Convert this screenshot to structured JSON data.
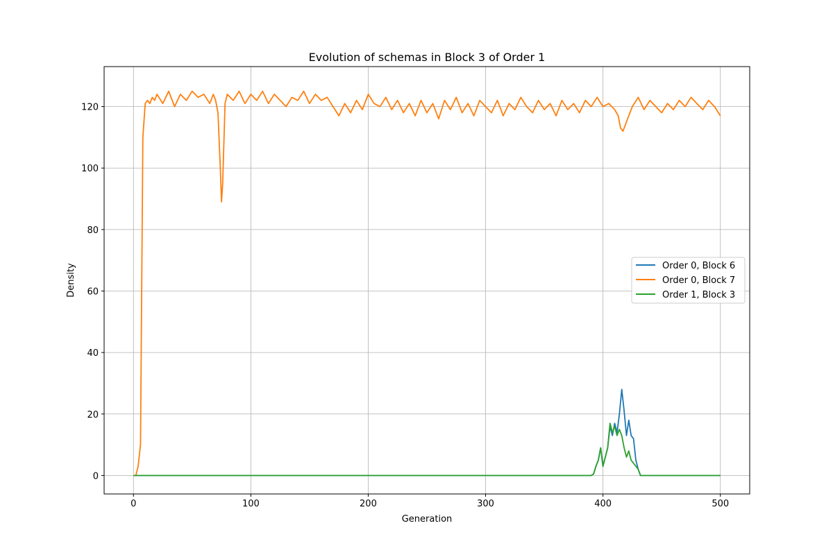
{
  "chart_data": {
    "type": "line",
    "title": "Evolution of schemas in Block 3 of Order 1",
    "xlabel": "Generation",
    "ylabel": "Density",
    "xlim": [
      -25,
      525
    ],
    "ylim": [
      -6,
      133
    ],
    "xticks": [
      0,
      100,
      200,
      300,
      400,
      500
    ],
    "yticks": [
      0,
      20,
      40,
      60,
      80,
      100,
      120
    ],
    "grid": true,
    "legend_position": "center-right",
    "series": [
      {
        "name": "Order 0, Block 6",
        "color": "#1f77b4",
        "points": [
          [
            0,
            0
          ],
          [
            390,
            0
          ],
          [
            392,
            0.5
          ],
          [
            394,
            3
          ],
          [
            396,
            5
          ],
          [
            398,
            9
          ],
          [
            400,
            3
          ],
          [
            402,
            6
          ],
          [
            404,
            9
          ],
          [
            406,
            16
          ],
          [
            408,
            13
          ],
          [
            410,
            17
          ],
          [
            412,
            14
          ],
          [
            414,
            20
          ],
          [
            416,
            28
          ],
          [
            418,
            21
          ],
          [
            420,
            13
          ],
          [
            422,
            18
          ],
          [
            424,
            13
          ],
          [
            426,
            12
          ],
          [
            428,
            5
          ],
          [
            430,
            2
          ],
          [
            432,
            0
          ],
          [
            500,
            0
          ]
        ]
      },
      {
        "name": "Order 0, Block 7",
        "color": "#ff7f0e",
        "points": [
          [
            0,
            0
          ],
          [
            2,
            0
          ],
          [
            4,
            3
          ],
          [
            6,
            10
          ],
          [
            8,
            110
          ],
          [
            10,
            121
          ],
          [
            12,
            122
          ],
          [
            14,
            121
          ],
          [
            16,
            123
          ],
          [
            18,
            122
          ],
          [
            20,
            124
          ],
          [
            25,
            121
          ],
          [
            30,
            125
          ],
          [
            35,
            120
          ],
          [
            40,
            124
          ],
          [
            45,
            122
          ],
          [
            50,
            125
          ],
          [
            55,
            123
          ],
          [
            60,
            124
          ],
          [
            65,
            121
          ],
          [
            68,
            124
          ],
          [
            70,
            122
          ],
          [
            72,
            118
          ],
          [
            74,
            100
          ],
          [
            75,
            89
          ],
          [
            76,
            95
          ],
          [
            78,
            121
          ],
          [
            80,
            124
          ],
          [
            85,
            122
          ],
          [
            90,
            125
          ],
          [
            95,
            121
          ],
          [
            100,
            124
          ],
          [
            105,
            122
          ],
          [
            110,
            125
          ],
          [
            115,
            121
          ],
          [
            120,
            124
          ],
          [
            125,
            122
          ],
          [
            130,
            120
          ],
          [
            135,
            123
          ],
          [
            140,
            122
          ],
          [
            145,
            125
          ],
          [
            150,
            121
          ],
          [
            155,
            124
          ],
          [
            160,
            122
          ],
          [
            165,
            123
          ],
          [
            170,
            120
          ],
          [
            175,
            117
          ],
          [
            180,
            121
          ],
          [
            185,
            118
          ],
          [
            190,
            122
          ],
          [
            195,
            119
          ],
          [
            200,
            124
          ],
          [
            205,
            121
          ],
          [
            210,
            120
          ],
          [
            215,
            123
          ],
          [
            220,
            119
          ],
          [
            225,
            122
          ],
          [
            230,
            118
          ],
          [
            235,
            121
          ],
          [
            240,
            117
          ],
          [
            245,
            122
          ],
          [
            250,
            118
          ],
          [
            255,
            121
          ],
          [
            260,
            116
          ],
          [
            265,
            122
          ],
          [
            270,
            119
          ],
          [
            275,
            123
          ],
          [
            280,
            118
          ],
          [
            285,
            121
          ],
          [
            290,
            117
          ],
          [
            295,
            122
          ],
          [
            300,
            120
          ],
          [
            305,
            118
          ],
          [
            310,
            122
          ],
          [
            315,
            117
          ],
          [
            320,
            121
          ],
          [
            325,
            119
          ],
          [
            330,
            123
          ],
          [
            335,
            120
          ],
          [
            340,
            118
          ],
          [
            345,
            122
          ],
          [
            350,
            119
          ],
          [
            355,
            121
          ],
          [
            360,
            117
          ],
          [
            365,
            122
          ],
          [
            370,
            119
          ],
          [
            375,
            121
          ],
          [
            380,
            118
          ],
          [
            385,
            122
          ],
          [
            390,
            120
          ],
          [
            395,
            123
          ],
          [
            400,
            120
          ],
          [
            405,
            121
          ],
          [
            410,
            119
          ],
          [
            413,
            117
          ],
          [
            415,
            113
          ],
          [
            417,
            112
          ],
          [
            419,
            114
          ],
          [
            421,
            116
          ],
          [
            423,
            118
          ],
          [
            425,
            120
          ],
          [
            430,
            123
          ],
          [
            435,
            119
          ],
          [
            440,
            122
          ],
          [
            445,
            120
          ],
          [
            450,
            118
          ],
          [
            455,
            121
          ],
          [
            460,
            119
          ],
          [
            465,
            122
          ],
          [
            470,
            120
          ],
          [
            475,
            123
          ],
          [
            480,
            121
          ],
          [
            485,
            119
          ],
          [
            490,
            122
          ],
          [
            495,
            120
          ],
          [
            500,
            117
          ]
        ]
      },
      {
        "name": "Order 1, Block 3",
        "color": "#2ca02c",
        "points": [
          [
            0,
            0
          ],
          [
            390,
            0
          ],
          [
            392,
            0.5
          ],
          [
            394,
            3
          ],
          [
            396,
            5
          ],
          [
            398,
            9
          ],
          [
            400,
            3
          ],
          [
            402,
            6
          ],
          [
            404,
            9
          ],
          [
            406,
            17
          ],
          [
            408,
            14
          ],
          [
            410,
            16
          ],
          [
            412,
            13
          ],
          [
            414,
            15
          ],
          [
            416,
            13
          ],
          [
            418,
            9
          ],
          [
            420,
            6
          ],
          [
            422,
            8
          ],
          [
            424,
            5
          ],
          [
            426,
            4
          ],
          [
            428,
            3
          ],
          [
            430,
            2
          ],
          [
            432,
            0
          ],
          [
            500,
            0
          ]
        ]
      }
    ]
  }
}
